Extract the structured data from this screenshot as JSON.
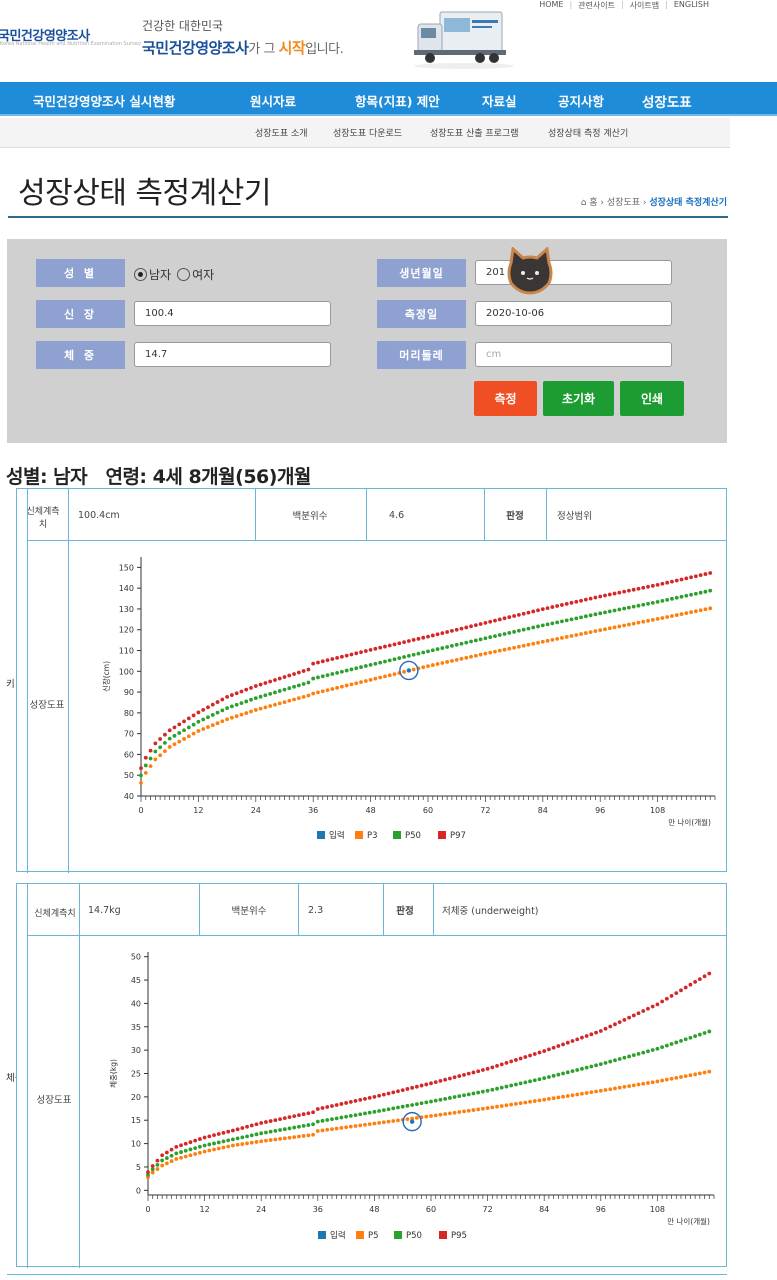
{
  "header": {
    "top_links": [
      "HOME",
      "관련사이트",
      "사이트맵",
      "ENGLISH"
    ],
    "logo_text": "국민건강영양조사",
    "logo_sub": "Korea National Health and Nutrition Examination Survey",
    "slogan_line1": "건강한 대한민국",
    "slogan_brand": "국민건강영양조사",
    "slogan_mid": "가 그 ",
    "slogan_accent": "시작",
    "slogan_end": "입니다."
  },
  "main_menu": [
    "국민건강영양조사 실시현황",
    "원시자료",
    "항목(지표) 제안",
    "자료실",
    "공지사항",
    "성장도표"
  ],
  "sub_menu": [
    "성장도표 소개",
    "성장도표 다운로드",
    "성장도표 산출 프로그램",
    "성장상태 측정 계산기"
  ],
  "page": {
    "title": "성장상태 측정계산기",
    "breadcrumb_home": "홈",
    "breadcrumb_mid": "성장도표",
    "breadcrumb_current": "성장상태 측정계산기"
  },
  "form": {
    "sex_label": "성 별",
    "sex_male": "남자",
    "sex_female": "여자",
    "height_label": "신 장",
    "height_value": "100.4",
    "weight_label": "체 중",
    "weight_value": "14.7",
    "birth_label": "생년월일",
    "birth_value": "201",
    "measure_label": "측정일",
    "measure_value": "2020-10-06",
    "head_label": "머리둘레",
    "head_placeholder": "cm",
    "btn_measure": "측정",
    "btn_reset": "초기화",
    "btn_print": "인쇄"
  },
  "result_summary": "성별: 남자   연령: 4세 8개월(56)개월",
  "height_panel": {
    "side_label": "키",
    "measure_header": "신체계측치",
    "measure_value": "100.4cm",
    "percentile_header": "백분위수",
    "percentile_value": "4.6",
    "judge_header": "판정",
    "judge_value": "정상범위",
    "chart_label": "성장도표"
  },
  "weight_panel": {
    "side_label": "체중",
    "measure_header": "신체계측치",
    "measure_value": "14.7kg",
    "percentile_header": "백분위수",
    "percentile_value": "2.3",
    "judge_header": "판정",
    "judge_value": "저체중 (underweight)",
    "chart_label": "성장도표"
  },
  "chart_data": [
    {
      "type": "scatter",
      "ylabel": "신장(cm)",
      "xlabel": "만 나이(개월)",
      "xlim": [
        0,
        120
      ],
      "ylim": [
        40,
        155
      ],
      "xticks": [
        0,
        12,
        24,
        36,
        48,
        60,
        72,
        84,
        96,
        108
      ],
      "yticks": [
        40,
        50,
        60,
        70,
        80,
        90,
        100,
        110,
        120,
        130,
        140,
        150
      ],
      "legend": [
        "입력",
        "P3",
        "P50",
        "P97"
      ],
      "colors": {
        "입력": "#1f77b4",
        "P3": "#ff7f0e",
        "P50": "#2ca02c",
        "P97": "#d62728"
      },
      "input_point": {
        "x": 56,
        "y": 100.4
      },
      "series": [
        {
          "name": "P3",
          "x": [
            0,
            1,
            3,
            6,
            12,
            18,
            24,
            35.9,
            36,
            48,
            60,
            72,
            84,
            96,
            108,
            119
          ],
          "values": [
            46.3,
            51.1,
            57.6,
            63.6,
            71.3,
            76.9,
            81.4,
            88.9,
            89.3,
            95.9,
            102.5,
            108.5,
            114.2,
            119.8,
            125.2,
            130.3
          ]
        },
        {
          "name": "P50",
          "x": [
            0,
            1,
            3,
            6,
            12,
            18,
            24,
            35.9,
            36,
            48,
            60,
            72,
            84,
            96,
            108,
            119
          ],
          "values": [
            49.9,
            54.7,
            61.4,
            67.6,
            75.7,
            82.3,
            87.1,
            95.2,
            96.5,
            103.1,
            109.6,
            115.9,
            122.1,
            127.9,
            133.4,
            138.8
          ]
        },
        {
          "name": "P97",
          "x": [
            0,
            1,
            3,
            6,
            12,
            18,
            24,
            35.9,
            36,
            48,
            60,
            72,
            84,
            96,
            108,
            119
          ],
          "values": [
            53.4,
            58.4,
            65.3,
            71.6,
            80.2,
            87.7,
            92.9,
            101.5,
            103.7,
            110.3,
            116.7,
            123.3,
            129.9,
            136.0,
            141.6,
            147.3
          ]
        }
      ]
    },
    {
      "type": "scatter",
      "ylabel": "체중(kg)",
      "xlabel": "만 나이(개월)",
      "xlim": [
        0,
        120
      ],
      "ylim": [
        -1,
        51
      ],
      "xticks": [
        0,
        12,
        24,
        36,
        48,
        60,
        72,
        84,
        96,
        108
      ],
      "yticks": [
        0,
        5,
        10,
        15,
        20,
        25,
        30,
        35,
        40,
        45,
        50
      ],
      "legend": [
        "입력",
        "P5",
        "P50",
        "P95"
      ],
      "colors": {
        "입력": "#1f77b4",
        "P5": "#ff7f0e",
        "P50": "#2ca02c",
        "P95": "#d62728"
      },
      "input_point": {
        "x": 56,
        "y": 14.7
      },
      "series": [
        {
          "name": "P5",
          "x": [
            0,
            1,
            3,
            6,
            12,
            18,
            24,
            35.9,
            36,
            48,
            60,
            72,
            84,
            96,
            108,
            119
          ],
          "values": [
            2.8,
            3.8,
            5.3,
            6.7,
            8.3,
            9.6,
            10.5,
            12.0,
            12.7,
            14.3,
            15.9,
            17.6,
            19.4,
            21.3,
            23.3,
            25.4
          ]
        },
        {
          "name": "P50",
          "x": [
            0,
            1,
            3,
            6,
            12,
            18,
            24,
            35.9,
            36,
            48,
            60,
            72,
            84,
            96,
            108,
            119
          ],
          "values": [
            3.3,
            4.5,
            6.4,
            7.9,
            9.6,
            10.9,
            12.2,
            14.3,
            14.7,
            16.8,
            19.0,
            21.3,
            24.0,
            27.0,
            30.3,
            34.0
          ]
        },
        {
          "name": "P95",
          "x": [
            0,
            1,
            3,
            6,
            12,
            18,
            24,
            35.9,
            36,
            48,
            60,
            72,
            84,
            96,
            108,
            119
          ],
          "values": [
            3.9,
            5.2,
            7.5,
            9.3,
            11.3,
            12.8,
            14.4,
            16.9,
            17.4,
            20.0,
            22.9,
            26.0,
            29.8,
            34.1,
            39.8,
            46.4
          ]
        }
      ]
    }
  ]
}
